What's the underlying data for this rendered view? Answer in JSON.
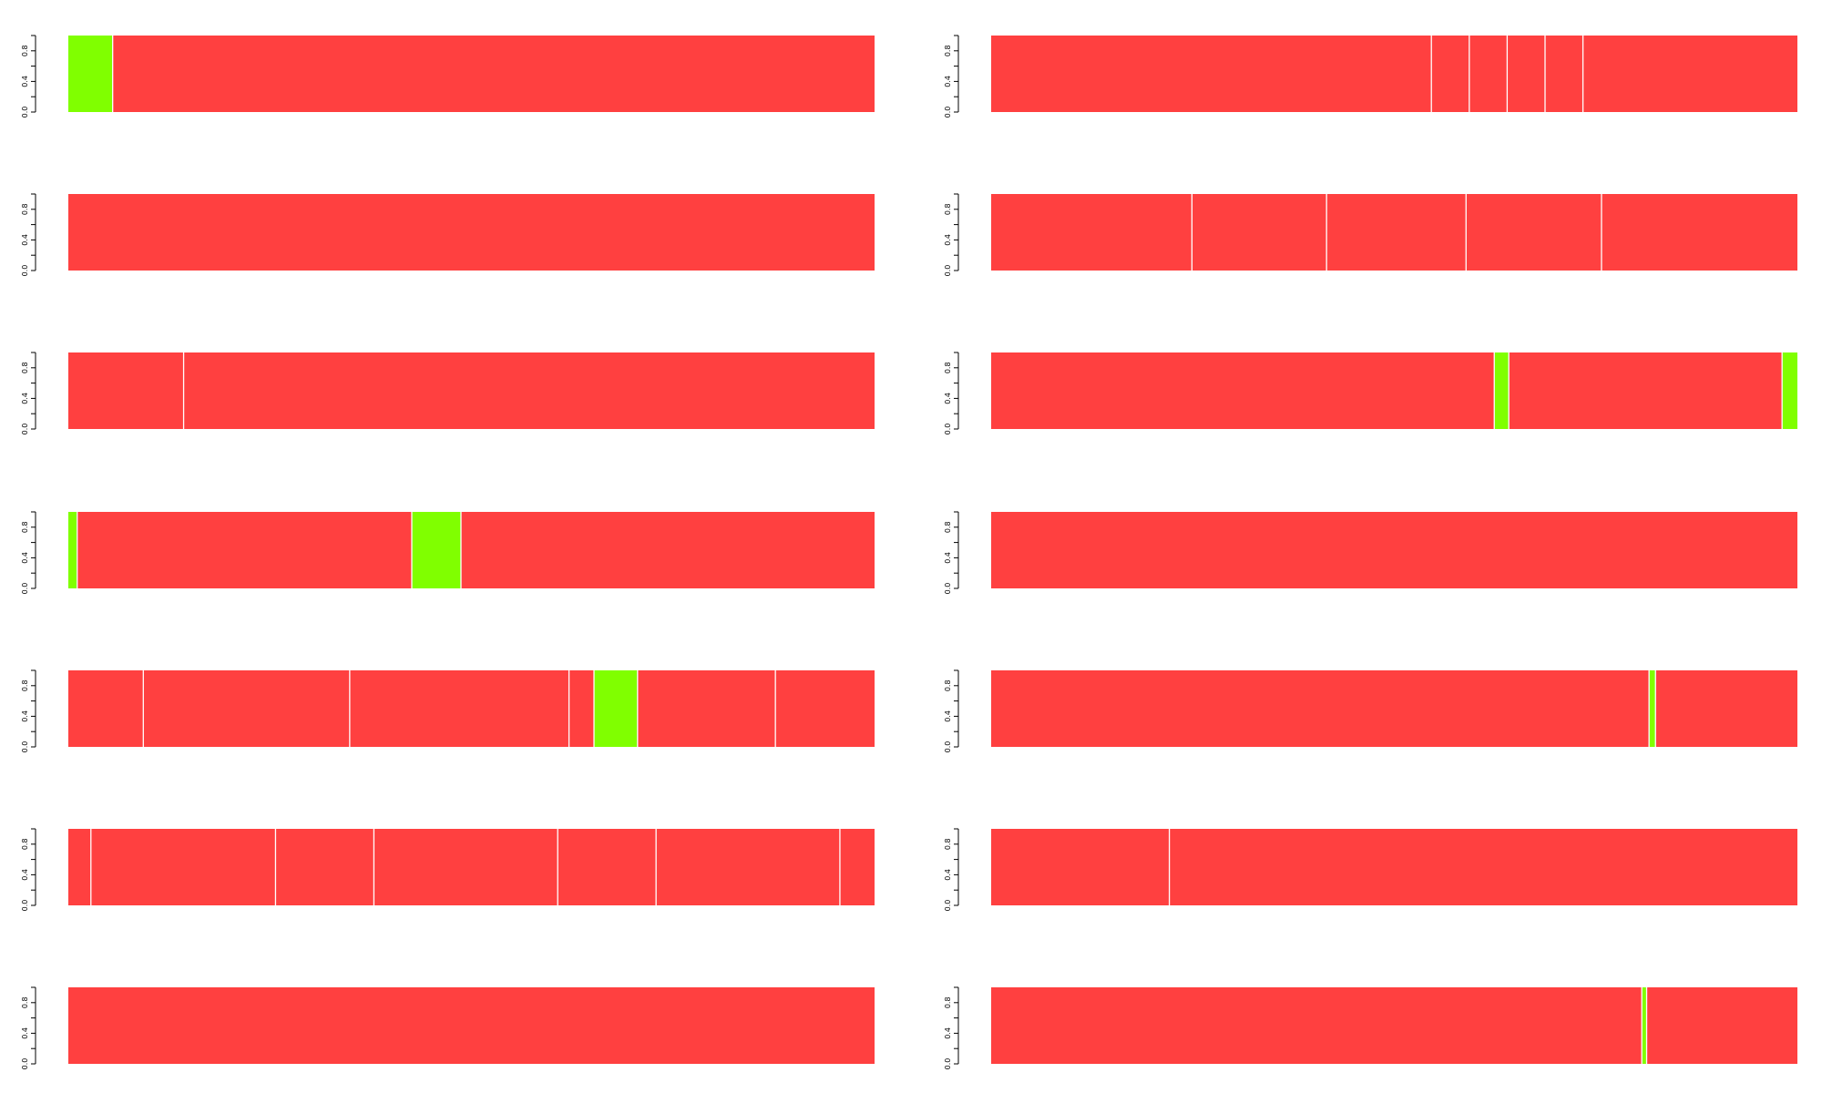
{
  "colors": {
    "red": "#ff4040",
    "green": "#80ff00",
    "separator": "#ffffff",
    "axis": "#000000"
  },
  "chart_data": [
    {
      "type": "bar",
      "subtype": "stacked-100",
      "ylim": [
        0,
        1
      ],
      "yticks": [
        "0.0",
        "0.4",
        "0.8"
      ],
      "segments": [
        {
          "w": 0.055,
          "c": "green"
        },
        {
          "w": 0.945,
          "c": "red"
        }
      ]
    },
    {
      "type": "bar",
      "subtype": "stacked-100",
      "ylim": [
        0,
        1
      ],
      "yticks": [
        "0.0",
        "0.4",
        "0.8"
      ],
      "segments": [
        {
          "w": 0.546,
          "c": "red"
        },
        {
          "w": 0.047,
          "c": "red"
        },
        {
          "w": 0.047,
          "c": "red"
        },
        {
          "w": 0.047,
          "c": "red"
        },
        {
          "w": 0.047,
          "c": "red"
        },
        {
          "w": 0.266,
          "c": "red"
        }
      ]
    },
    {
      "type": "bar",
      "subtype": "stacked-100",
      "ylim": [
        0,
        1
      ],
      "yticks": [
        "0.0",
        "0.4",
        "0.8"
      ],
      "segments": [
        {
          "w": 1.0,
          "c": "red"
        }
      ]
    },
    {
      "type": "bar",
      "subtype": "stacked-100",
      "ylim": [
        0,
        1
      ],
      "yticks": [
        "0.0",
        "0.4",
        "0.8"
      ],
      "segments": [
        {
          "w": 0.249,
          "c": "red"
        },
        {
          "w": 0.167,
          "c": "red"
        },
        {
          "w": 0.173,
          "c": "red"
        },
        {
          "w": 0.168,
          "c": "red"
        },
        {
          "w": 0.243,
          "c": "red"
        }
      ]
    },
    {
      "type": "bar",
      "subtype": "stacked-100",
      "ylim": [
        0,
        1
      ],
      "yticks": [
        "0.0",
        "0.4",
        "0.8"
      ],
      "segments": [
        {
          "w": 0.143,
          "c": "red"
        },
        {
          "w": 0.857,
          "c": "red"
        }
      ]
    },
    {
      "type": "bar",
      "subtype": "stacked-100",
      "ylim": [
        0,
        1
      ],
      "yticks": [
        "0.0",
        "0.4",
        "0.8"
      ],
      "segments": [
        {
          "w": 0.624,
          "c": "red"
        },
        {
          "w": 0.018,
          "c": "green"
        },
        {
          "w": 0.339,
          "c": "red"
        },
        {
          "w": 0.019,
          "c": "green"
        }
      ]
    },
    {
      "type": "bar",
      "subtype": "stacked-100",
      "ylim": [
        0,
        1
      ],
      "yticks": [
        "0.0",
        "0.4",
        "0.8"
      ],
      "segments": [
        {
          "w": 0.011,
          "c": "green"
        },
        {
          "w": 0.415,
          "c": "red"
        },
        {
          "w": 0.061,
          "c": "green"
        },
        {
          "w": 0.513,
          "c": "red"
        }
      ]
    },
    {
      "type": "bar",
      "subtype": "stacked-100",
      "ylim": [
        0,
        1
      ],
      "yticks": [
        "0.0",
        "0.4",
        "0.8"
      ],
      "segments": [
        {
          "w": 1.0,
          "c": "red"
        }
      ]
    },
    {
      "type": "bar",
      "subtype": "stacked-100",
      "ylim": [
        0,
        1
      ],
      "yticks": [
        "0.0",
        "0.4",
        "0.8"
      ],
      "segments": [
        {
          "w": 0.093,
          "c": "red"
        },
        {
          "w": 0.256,
          "c": "red"
        },
        {
          "w": 0.272,
          "c": "red"
        },
        {
          "w": 0.031,
          "c": "red"
        },
        {
          "w": 0.054,
          "c": "green"
        },
        {
          "w": 0.171,
          "c": "red"
        },
        {
          "w": 0.123,
          "c": "red"
        }
      ]
    },
    {
      "type": "bar",
      "subtype": "stacked-100",
      "ylim": [
        0,
        1
      ],
      "yticks": [
        "0.0",
        "0.4",
        "0.8"
      ],
      "segments": [
        {
          "w": 0.816,
          "c": "red"
        },
        {
          "w": 0.008,
          "c": "green"
        },
        {
          "w": 0.176,
          "c": "red"
        }
      ]
    },
    {
      "type": "bar",
      "subtype": "stacked-100",
      "ylim": [
        0,
        1
      ],
      "yticks": [
        "0.0",
        "0.4",
        "0.8"
      ],
      "segments": [
        {
          "w": 0.028,
          "c": "red"
        },
        {
          "w": 0.229,
          "c": "red"
        },
        {
          "w": 0.122,
          "c": "red"
        },
        {
          "w": 0.228,
          "c": "red"
        },
        {
          "w": 0.122,
          "c": "red"
        },
        {
          "w": 0.228,
          "c": "red"
        },
        {
          "w": 0.043,
          "c": "red"
        }
      ]
    },
    {
      "type": "bar",
      "subtype": "stacked-100",
      "ylim": [
        0,
        1
      ],
      "yticks": [
        "0.0",
        "0.4",
        "0.8"
      ],
      "segments": [
        {
          "w": 0.221,
          "c": "red"
        },
        {
          "w": 0.779,
          "c": "red"
        }
      ]
    },
    {
      "type": "bar",
      "subtype": "stacked-100",
      "ylim": [
        0,
        1
      ],
      "yticks": [
        "0.0",
        "0.4",
        "0.8"
      ],
      "segments": [
        {
          "w": 1.0,
          "c": "red"
        }
      ]
    },
    {
      "type": "bar",
      "subtype": "stacked-100",
      "ylim": [
        0,
        1
      ],
      "yticks": [
        "0.0",
        "0.4",
        "0.8"
      ],
      "segments": [
        {
          "w": 0.807,
          "c": "red"
        },
        {
          "w": 0.006,
          "c": "green"
        },
        {
          "w": 0.187,
          "c": "red"
        }
      ]
    }
  ]
}
